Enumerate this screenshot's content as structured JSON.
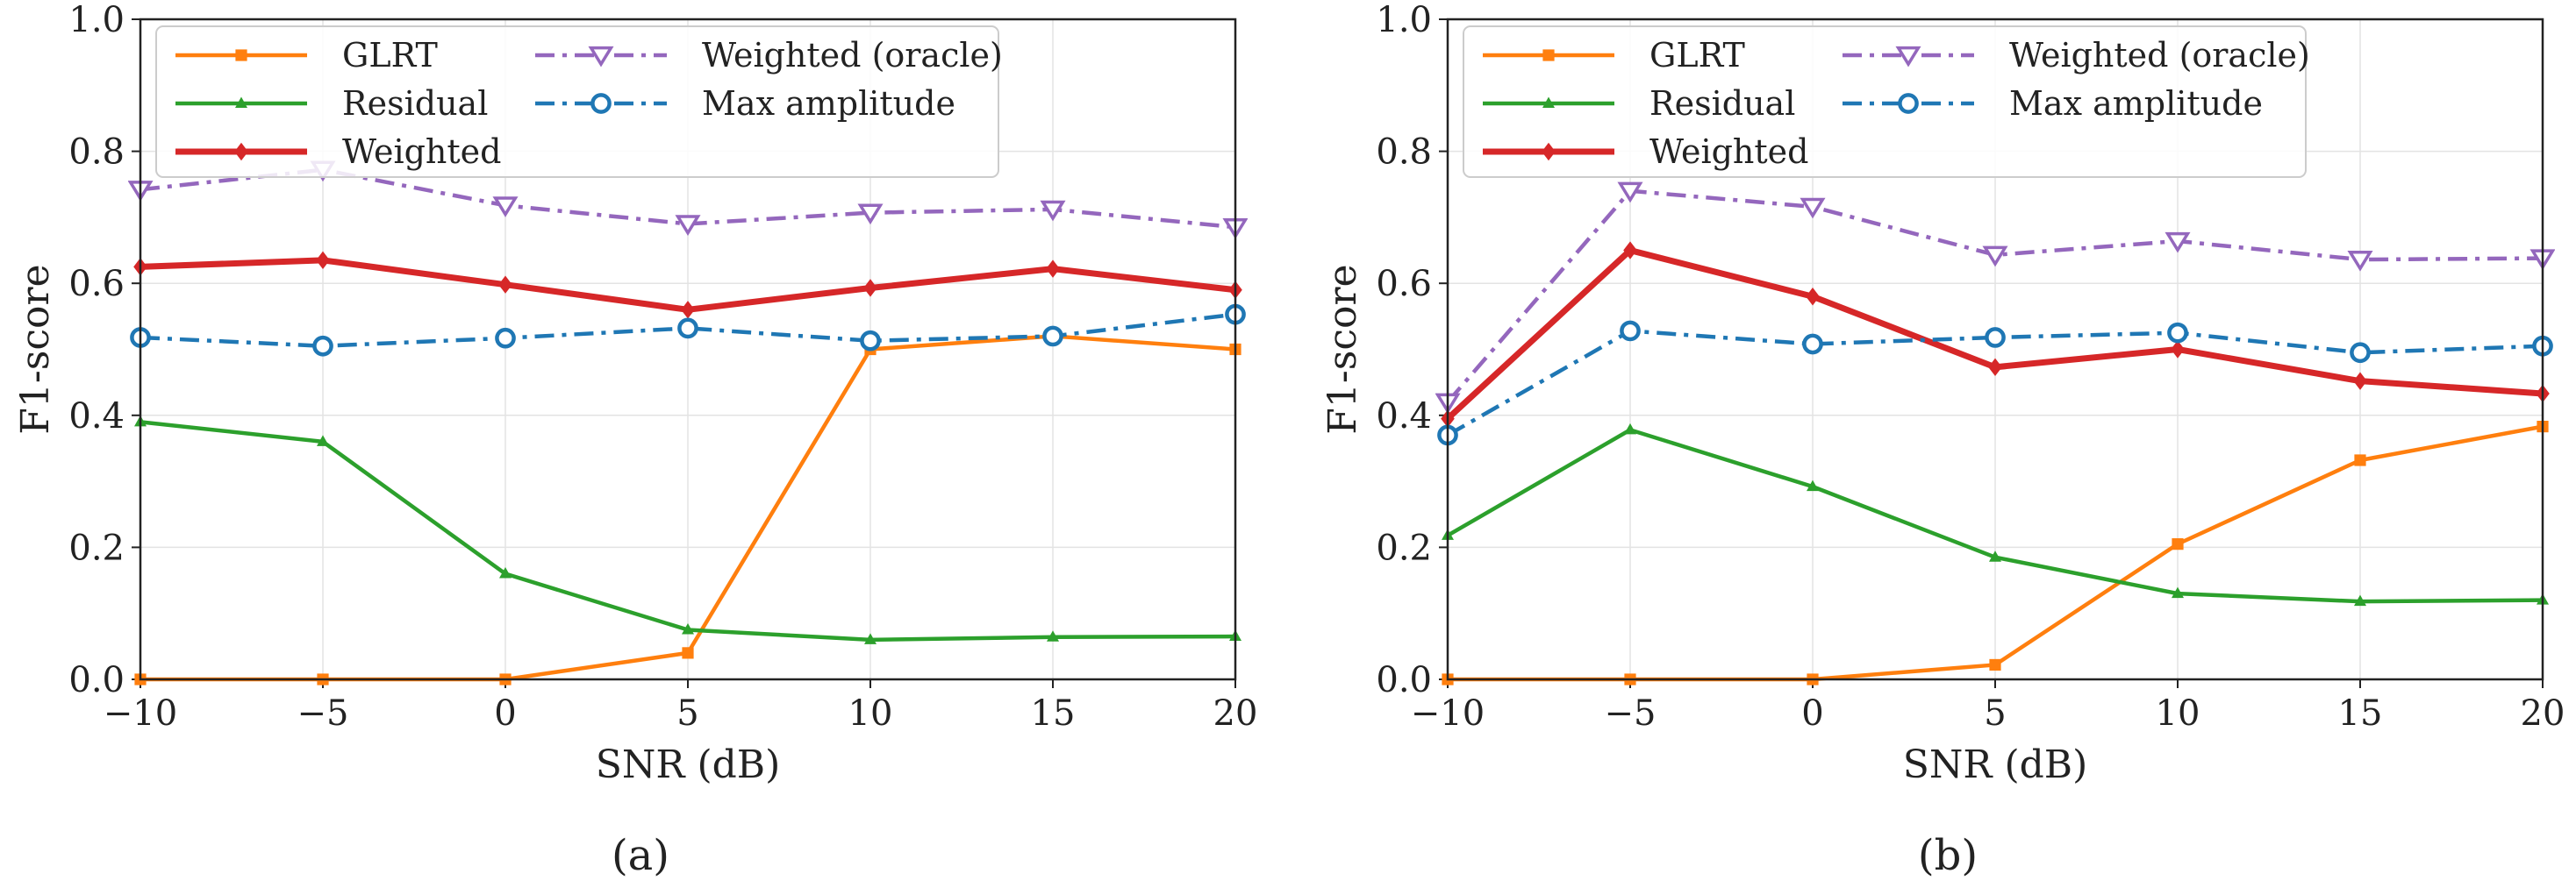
{
  "chart_data": [
    {
      "type": "line",
      "caption": "(a)",
      "xlabel": "SNR (dB)",
      "ylabel": "F1-score",
      "xlim": [
        -10,
        20
      ],
      "ylim": [
        0,
        1.0
      ],
      "xticks": [
        -10,
        -5,
        0,
        5,
        10,
        15,
        20
      ],
      "xtick_labels": [
        "−10",
        "−5",
        "0",
        "5",
        "10",
        "15",
        "20"
      ],
      "yticks": [
        0,
        0.2,
        0.4,
        0.6,
        0.8,
        1.0
      ],
      "ytick_labels": [
        "0.0",
        "0.2",
        "0.4",
        "0.6",
        "0.8",
        "1.0"
      ],
      "grid": true,
      "legend_position": "top-left",
      "x": [
        -10,
        -5,
        0,
        5,
        10,
        15,
        20
      ],
      "series": [
        {
          "name": "GLRT",
          "color": "#ff7f0e",
          "marker": "square",
          "style": "solid",
          "values": [
            0.0,
            0.0,
            0.0,
            0.04,
            0.5,
            0.52,
            0.5
          ]
        },
        {
          "name": "Residual",
          "color": "#2ca02c",
          "marker": "triangle-up",
          "style": "solid",
          "values": [
            0.39,
            0.36,
            0.16,
            0.075,
            0.06,
            0.064,
            0.065
          ]
        },
        {
          "name": "Weighted",
          "color": "#d62728",
          "marker": "diamond",
          "style": "solid",
          "values": [
            0.625,
            0.635,
            0.598,
            0.56,
            0.593,
            0.622,
            0.59
          ]
        },
        {
          "name": "Weighted (oracle)",
          "color": "#9467bd",
          "marker": "triangle-down",
          "style": "dashdot",
          "values": [
            0.742,
            0.772,
            0.718,
            0.69,
            0.707,
            0.712,
            0.685
          ]
        },
        {
          "name": "Max amplitude",
          "color": "#1f77b4",
          "marker": "circle",
          "style": "dashdot",
          "values": [
            0.518,
            0.505,
            0.517,
            0.532,
            0.513,
            0.52,
            0.553
          ]
        }
      ]
    },
    {
      "type": "line",
      "caption": "(b)",
      "xlabel": "SNR (dB)",
      "ylabel": "F1-score",
      "xlim": [
        -10,
        20
      ],
      "ylim": [
        0,
        1.0
      ],
      "xticks": [
        -10,
        -5,
        0,
        5,
        10,
        15,
        20
      ],
      "xtick_labels": [
        "−10",
        "−5",
        "0",
        "5",
        "10",
        "15",
        "20"
      ],
      "yticks": [
        0,
        0.2,
        0.4,
        0.6,
        0.8,
        1.0
      ],
      "ytick_labels": [
        "0.0",
        "0.2",
        "0.4",
        "0.6",
        "0.8",
        "1.0"
      ],
      "grid": true,
      "legend_position": "top-left",
      "x": [
        -10,
        -5,
        0,
        5,
        10,
        15,
        20
      ],
      "series": [
        {
          "name": "GLRT",
          "color": "#ff7f0e",
          "marker": "square",
          "style": "solid",
          "values": [
            0.0,
            0.0,
            0.0,
            0.022,
            0.205,
            0.332,
            0.383
          ]
        },
        {
          "name": "Residual",
          "color": "#2ca02c",
          "marker": "triangle-up",
          "style": "solid",
          "values": [
            0.218,
            0.378,
            0.292,
            0.185,
            0.13,
            0.118,
            0.12
          ]
        },
        {
          "name": "Weighted",
          "color": "#d62728",
          "marker": "diamond",
          "style": "solid",
          "values": [
            0.395,
            0.65,
            0.58,
            0.473,
            0.5,
            0.452,
            0.433
          ]
        },
        {
          "name": "Weighted (oracle)",
          "color": "#9467bd",
          "marker": "triangle-down",
          "style": "dashdot",
          "values": [
            0.42,
            0.74,
            0.716,
            0.643,
            0.664,
            0.636,
            0.638
          ]
        },
        {
          "name": "Max amplitude",
          "color": "#1f77b4",
          "marker": "circle",
          "style": "dashdot",
          "values": [
            0.37,
            0.528,
            0.508,
            0.518,
            0.525,
            0.495,
            0.505
          ]
        }
      ]
    }
  ]
}
